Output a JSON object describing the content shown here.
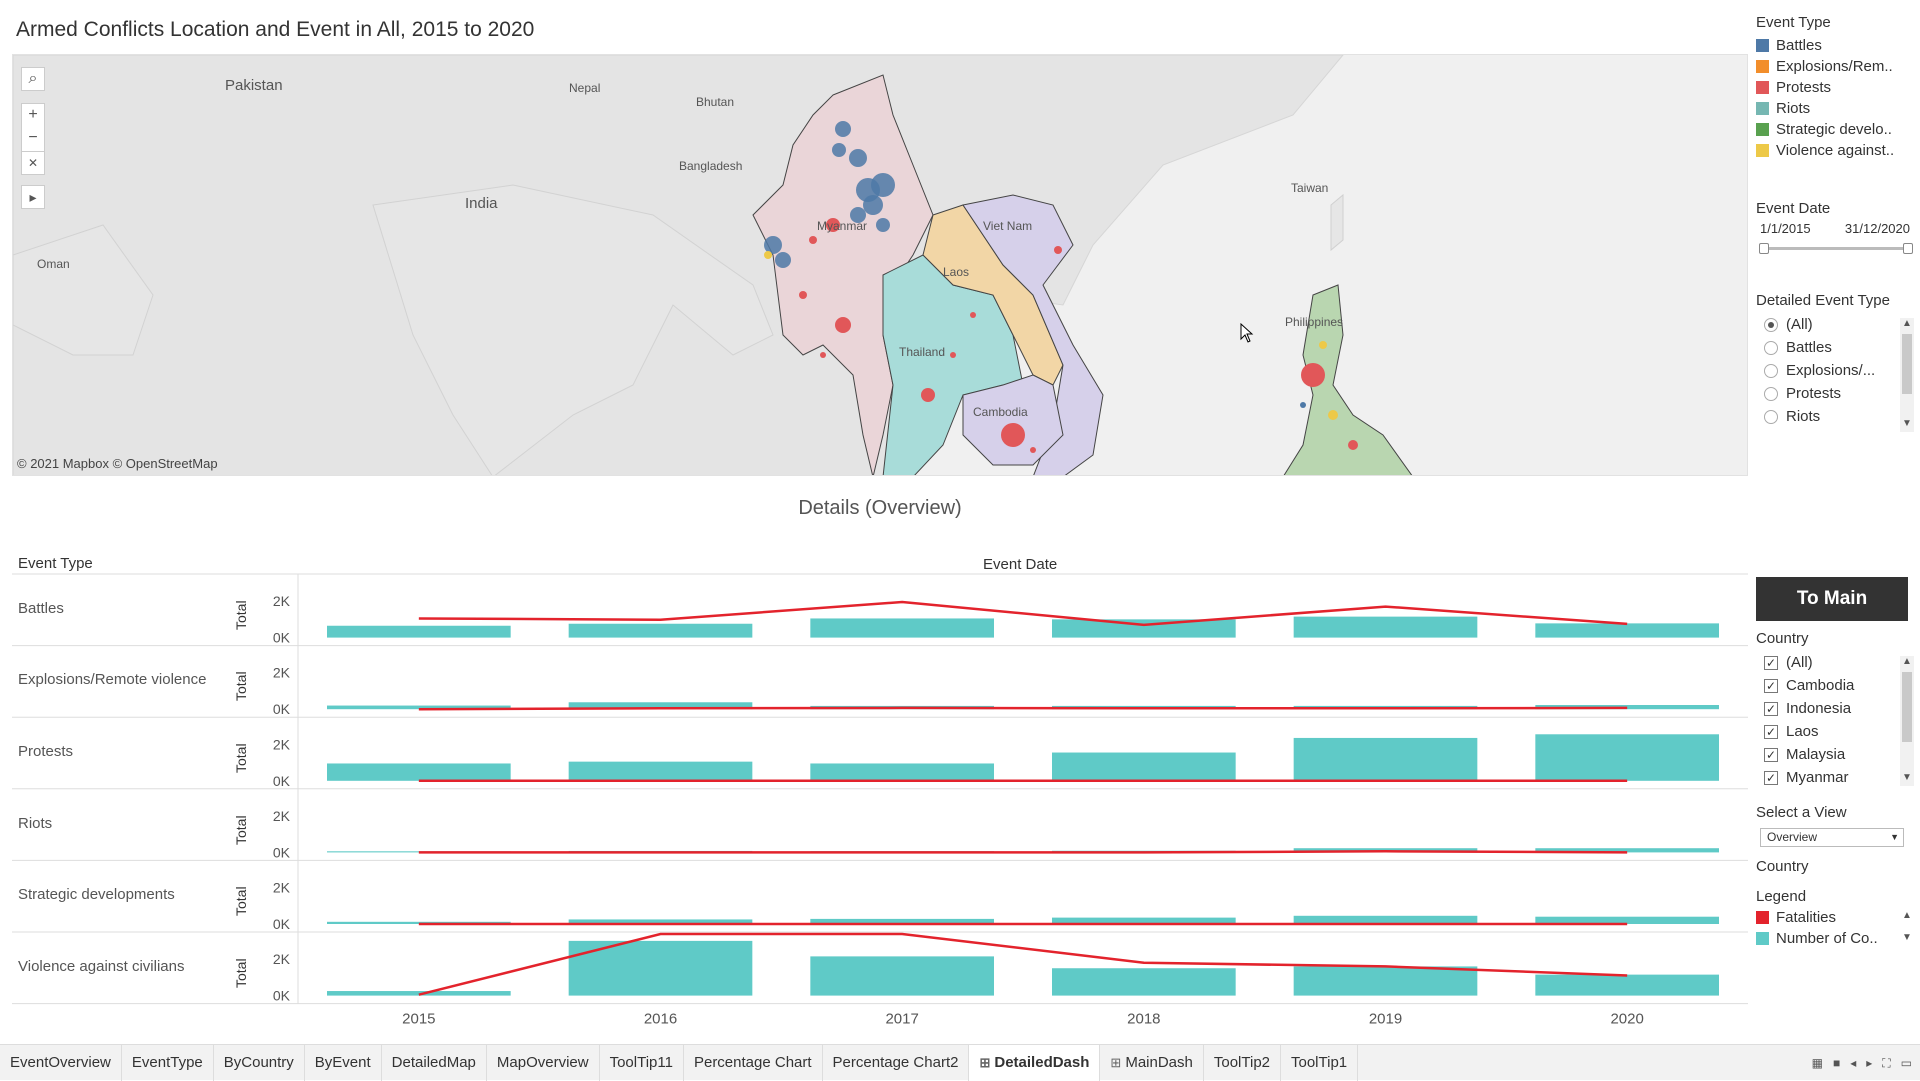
{
  "title": "Armed Conflicts Location and Event in All, 2015 to 2020",
  "map": {
    "attribution": "© 2021 Mapbox © OpenStreetMap",
    "labels": [
      "Pakistan",
      "Nepal",
      "Bhutan",
      "Bangladesh",
      "India",
      "Oman",
      "Myanmar",
      "Laos",
      "Viet Nam",
      "Thailand",
      "Cambodia",
      "Taiwan",
      "Philippines"
    ],
    "controls": {
      "search": "⌕",
      "zoom_in": "+",
      "zoom_out": "−",
      "reset": "✕",
      "play": "▸"
    }
  },
  "legend_event_type": {
    "title": "Event Type",
    "items": [
      {
        "label": "Battles",
        "color": "#4e79a7"
      },
      {
        "label": "Explosions/Rem..",
        "color": "#f28e2b"
      },
      {
        "label": "Protests",
        "color": "#e15759"
      },
      {
        "label": "Riots",
        "color": "#76b7b2"
      },
      {
        "label": "Strategic develo..",
        "color": "#59a14f"
      },
      {
        "label": "Violence against..",
        "color": "#edc948"
      }
    ]
  },
  "event_date": {
    "title": "Event Date",
    "start": "1/1/2015",
    "end": "31/12/2020"
  },
  "detailed_event_type": {
    "title": "Detailed Event Type",
    "options": [
      "(All)",
      "Battles",
      "Explosions/...",
      "Protests",
      "Riots"
    ],
    "selected": "(All)"
  },
  "to_main_label": "To Main",
  "country_filter": {
    "title": "Country",
    "options": [
      "(All)",
      "Cambodia",
      "Indonesia",
      "Laos",
      "Malaysia",
      "Myanmar"
    ]
  },
  "select_view": {
    "title": "Select a View",
    "value": "Overview"
  },
  "country_label": "Country",
  "legend_measures": {
    "title": "Legend",
    "items": [
      {
        "label": "Fatalities",
        "color": "#e3232c"
      },
      {
        "label": "Number of Co..",
        "color": "#5fcac7"
      }
    ]
  },
  "details_title": "Details (Overview)",
  "headers": {
    "row": "Event Type",
    "col": "Event Date",
    "measure": "Total"
  },
  "chart_data": {
    "type": "bar",
    "categories": [
      "2015",
      "2016",
      "2017",
      "2018",
      "2019",
      "2020"
    ],
    "ylim": [
      0,
      2500
    ],
    "ticks": [
      "2K",
      "0K"
    ],
    "rows": [
      {
        "label": "Battles",
        "bars": [
          650,
          760,
          1050,
          1000,
          1150,
          780
        ],
        "line": [
          1050,
          980,
          1950,
          700,
          1700,
          750
        ]
      },
      {
        "label": "Explosions/Remote violence",
        "bars": [
          200,
          380,
          180,
          180,
          180,
          230
        ],
        "line": [
          0,
          50,
          70,
          50,
          50,
          70
        ]
      },
      {
        "label": "Protests",
        "bars": [
          950,
          1050,
          950,
          1550,
          2350,
          2550
        ],
        "line": [
          0,
          0,
          0,
          0,
          0,
          0
        ]
      },
      {
        "label": "Riots",
        "bars": [
          60,
          80,
          70,
          90,
          230,
          230
        ],
        "line": [
          0,
          0,
          0,
          0,
          60,
          0
        ]
      },
      {
        "label": "Strategic developments",
        "bars": [
          120,
          250,
          280,
          350,
          450,
          400
        ],
        "line": [
          0,
          0,
          0,
          0,
          0,
          0
        ]
      },
      {
        "label": "Violence against civilians",
        "bars": [
          250,
          3000,
          2150,
          1500,
          1600,
          1150
        ],
        "line": [
          50,
          4000,
          3600,
          1800,
          1600,
          1100
        ]
      }
    ],
    "series": [
      {
        "name": "Fatalities",
        "color": "#e3232c"
      },
      {
        "name": "Number of Co..",
        "color": "#5fcac7"
      }
    ]
  },
  "tabs": [
    {
      "label": "EventOverview",
      "icon": ""
    },
    {
      "label": "EventType",
      "icon": ""
    },
    {
      "label": "ByCountry",
      "icon": ""
    },
    {
      "label": "ByEvent",
      "icon": ""
    },
    {
      "label": "DetailedMap",
      "icon": ""
    },
    {
      "label": "MapOverview",
      "icon": ""
    },
    {
      "label": "ToolTip11",
      "icon": ""
    },
    {
      "label": "Percentage Chart",
      "icon": ""
    },
    {
      "label": "Percentage Chart2",
      "icon": ""
    },
    {
      "label": "DetailedDash",
      "icon": "⊞",
      "active": true
    },
    {
      "label": "MainDash",
      "icon": "⊞"
    },
    {
      "label": "ToolTip2",
      "icon": ""
    },
    {
      "label": "ToolTip1",
      "icon": ""
    }
  ]
}
